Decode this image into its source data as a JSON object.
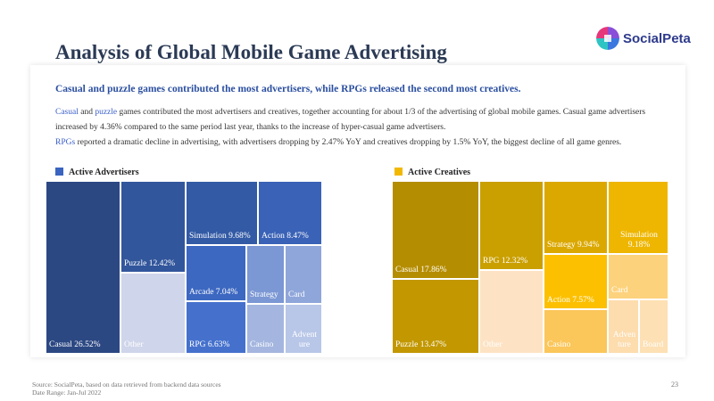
{
  "title": "Analysis of Global Mobile Game Advertising",
  "logo_text": "SocialPeta",
  "subtitle": "Casual and puzzle games contributed the most advertisers, while RPGs released the second most creatives.",
  "paragraph1": {
    "w1": "Casual",
    "t1": " and ",
    "w2": "puzzle",
    "t2": " games contributed the most advertisers and creatives, together accounting for about 1/3 of the advertising of global mobile games. Casual game advertisers",
    "line2": "increased by 4.36% compared to the same period last year, thanks to the increase of hyper-casual game advertisers."
  },
  "paragraph2": {
    "w1": "RPGs",
    "t1": " reported a dramatic decline in advertising, with advertisers dropping by 2.47% YoY and creatives dropping by 1.5% YoY, the biggest decline of all game genres."
  },
  "colors": {
    "advertisers_accent": "#3a64c0",
    "creatives_accent": "#f2b800"
  },
  "chart_data": [
    {
      "type": "treemap",
      "legend": "Active Advertisers",
      "tiles": [
        {
          "label": "Casual 26.52%",
          "category": "Casual",
          "value": 26.52,
          "color": "#2c4883"
        },
        {
          "label": "Puzzle 12.42%",
          "category": "Puzzle",
          "value": 12.42,
          "color": "#32569c"
        },
        {
          "label": "Other",
          "category": "Other",
          "value": null,
          "color": "#cfd5ea"
        },
        {
          "label": "Simulation 9.68%",
          "category": "Simulation",
          "value": 9.68,
          "color": "#335aa5"
        },
        {
          "label": "Action 8.47%",
          "category": "Action",
          "value": 8.47,
          "color": "#3a62b6"
        },
        {
          "label": "Arcade 7.04%",
          "category": "Arcade",
          "value": 7.04,
          "color": "#3d68c1"
        },
        {
          "label": "RPG 6.63%",
          "category": "RPG",
          "value": 6.63,
          "color": "#4571cd"
        },
        {
          "label": "Strategy",
          "category": "Strategy",
          "value": null,
          "color": "#7b97d4"
        },
        {
          "label": "Card",
          "category": "Card",
          "value": null,
          "color": "#8fa6da"
        },
        {
          "label": "Casino",
          "category": "Casino",
          "value": null,
          "color": "#a4b6df"
        },
        {
          "label": "Advent ure",
          "category": "Adventure",
          "value": null,
          "color": "#b8c6e8"
        }
      ]
    },
    {
      "type": "treemap",
      "legend": "Active Creatives",
      "tiles": [
        {
          "label": "Casual 17.86%",
          "category": "Casual",
          "value": 17.86,
          "color": "#b58d00"
        },
        {
          "label": "Puzzle 13.47%",
          "category": "Puzzle",
          "value": 13.47,
          "color": "#c29700"
        },
        {
          "label": "RPG 12.32%",
          "category": "RPG",
          "value": 12.32,
          "color": "#caa000"
        },
        {
          "label": "Other",
          "category": "Other",
          "value": null,
          "color": "#fde3c4"
        },
        {
          "label": "Strategy 9.94%",
          "category": "Strategy",
          "value": 9.94,
          "color": "#dba800"
        },
        {
          "label": "Simulation 9.18%",
          "category": "Simulation",
          "value": 9.18,
          "color": "#eeb600"
        },
        {
          "label": "Action 7.57%",
          "category": "Action",
          "value": 7.57,
          "color": "#fcc000"
        },
        {
          "label": "Card",
          "category": "Card",
          "value": null,
          "color": "#fdd27c"
        },
        {
          "label": "Casino",
          "category": "Casino",
          "value": null,
          "color": "#fbc65a"
        },
        {
          "label": "Adven ture",
          "category": "Adventure",
          "value": null,
          "color": "#fddcae"
        },
        {
          "label": "Board",
          "category": "Board",
          "value": null,
          "color": "#fde0b4"
        }
      ]
    }
  ],
  "footer": {
    "source": "Source: SocialPeta, based on data retrieved from backend data sources",
    "range": "Date Range: Jan-Jul 2022"
  },
  "page_number": "23"
}
